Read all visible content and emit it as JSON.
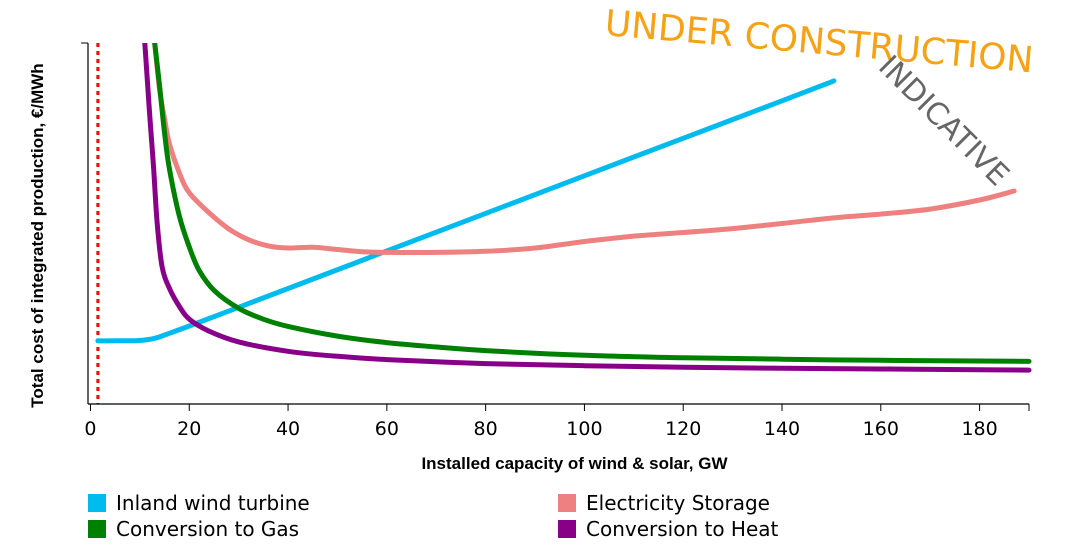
{
  "chart_data": {
    "type": "line",
    "xlabel": "Installed capacity of wind & solar, GW",
    "ylabel": "Total cost of integrated production, €/MWh",
    "xlim": [
      -0.5,
      190
    ],
    "ylim": [
      0,
      100
    ],
    "y_tick_labels_shown": false,
    "x_ticks": [
      0,
      20,
      40,
      60,
      80,
      100,
      120,
      140,
      160,
      180
    ],
    "reference_line": {
      "x": 1.5,
      "color": "#ff0000",
      "style": "dotted"
    },
    "legend_placement": "bottom",
    "series": [
      {
        "name": "Inland wind turbine",
        "color": "#00bbee",
        "x": [
          1.5,
          5,
          10,
          13,
          16,
          20,
          30,
          40,
          60,
          80,
          100,
          120,
          140,
          150.5
        ],
        "y": [
          17.5,
          17.5,
          17.6,
          18.2,
          19.6,
          21.6,
          26.8,
          32.0,
          42.4,
          52.8,
          63.2,
          73.6,
          84.0,
          89.5
        ]
      },
      {
        "name": "Electricity Storage",
        "color": "#ee8080",
        "x": [
          13,
          14,
          15,
          16,
          18,
          20,
          24,
          28,
          32,
          36,
          40,
          45,
          50,
          55,
          60,
          70,
          80,
          90,
          100,
          110,
          120,
          130,
          140,
          150,
          160,
          170,
          180,
          187
        ],
        "y": [
          100,
          87,
          79,
          72,
          64,
          58.5,
          53,
          48.5,
          45.5,
          43.8,
          43.2,
          43.4,
          42.8,
          42.2,
          42.0,
          42.0,
          42.3,
          43.2,
          45.0,
          46.5,
          47.5,
          48.6,
          50.0,
          51.5,
          52.6,
          54.0,
          56.5,
          59.0
        ]
      },
      {
        "name": "Conversion to Gas",
        "color": "#008000",
        "x": [
          13,
          14,
          15,
          16,
          18,
          20,
          22,
          25,
          30,
          35,
          40,
          50,
          60,
          70,
          80,
          100,
          120,
          140,
          160,
          180,
          190
        ],
        "y": [
          100,
          88,
          75,
          65,
          52,
          43.5,
          37.0,
          31.5,
          26.5,
          23.5,
          21.5,
          18.8,
          17.0,
          15.8,
          14.8,
          13.5,
          12.8,
          12.4,
          12.1,
          11.9,
          11.8
        ]
      },
      {
        "name": "Conversion to Heat",
        "color": "#880088",
        "x": [
          11,
          12,
          12.8,
          13.5,
          14.5,
          16,
          18,
          20,
          24,
          30,
          40,
          50,
          60,
          80,
          100,
          120,
          140,
          160,
          180,
          190
        ],
        "y": [
          100,
          80,
          65,
          50,
          38,
          32,
          27,
          23.5,
          20.2,
          17.2,
          14.6,
          13.2,
          12.3,
          11.2,
          10.6,
          10.2,
          9.9,
          9.7,
          9.5,
          9.4
        ]
      }
    ]
  },
  "watermarks": {
    "primary": "UNDER CONSTRUCTION",
    "secondary": "INDICATIVE"
  }
}
